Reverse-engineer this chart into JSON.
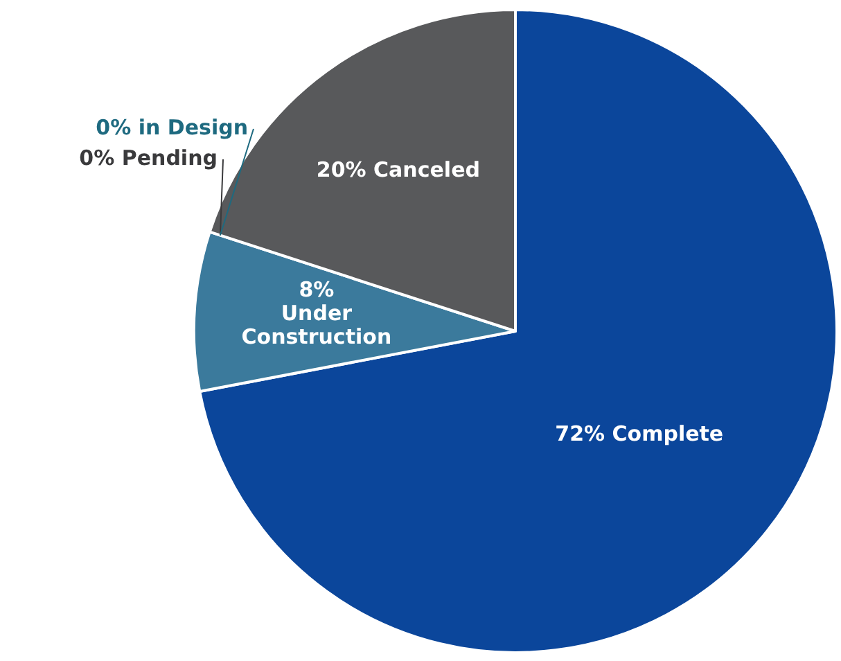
{
  "chart_data": {
    "type": "pie",
    "categories": [
      "Complete",
      "Under Construction",
      "Pending",
      "in Design",
      "Canceled"
    ],
    "values": [
      72,
      8,
      0,
      0,
      20
    ],
    "colors": [
      "#0b469b",
      "#3b7a9c",
      "#3a3a3c",
      "#1e6a80",
      "#58595b"
    ],
    "value_labels": [
      "72%",
      "8%",
      "0%",
      "0%",
      "20%"
    ]
  }
}
